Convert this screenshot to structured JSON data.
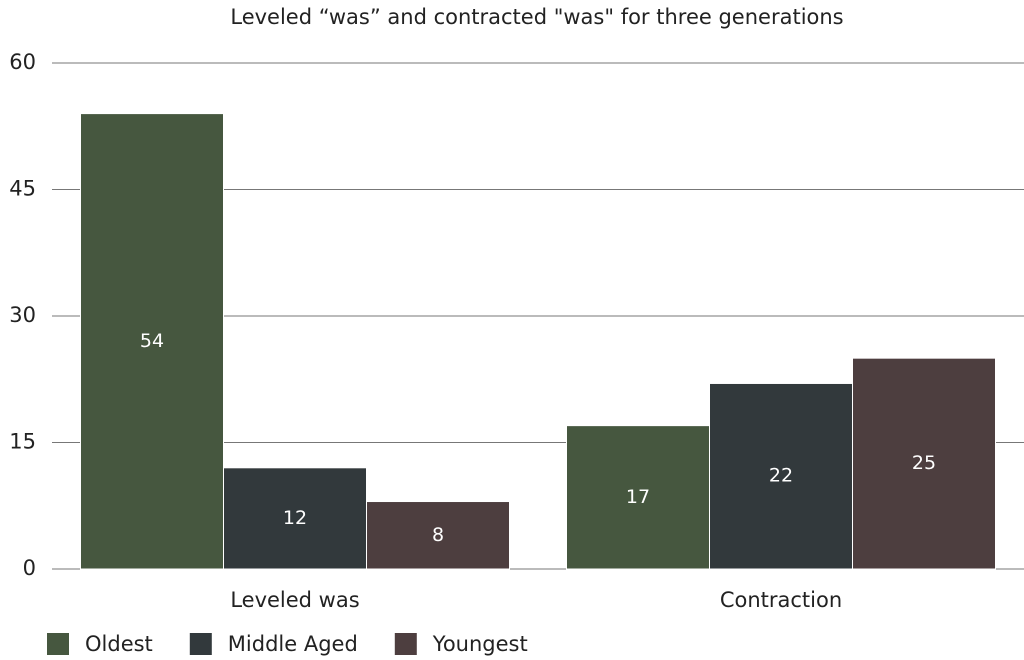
{
  "chart_data": {
    "type": "bar",
    "title": "Leveled “was” and contracted \"was\" for three generations",
    "categories": [
      "Leveled was",
      "Contraction"
    ],
    "series": [
      {
        "name": "Oldest",
        "color": "#46573f",
        "values": [
          54,
          17
        ]
      },
      {
        "name": "Middle Aged",
        "color": "#32393c",
        "values": [
          12,
          22
        ]
      },
      {
        "name": "Youngest",
        "color": "#4d3e3f",
        "values": [
          8,
          25
        ]
      }
    ],
    "ylim": [
      0,
      60
    ],
    "yticks": [
      0,
      15,
      30,
      45,
      60
    ],
    "grid": true,
    "legend": "bottom"
  }
}
